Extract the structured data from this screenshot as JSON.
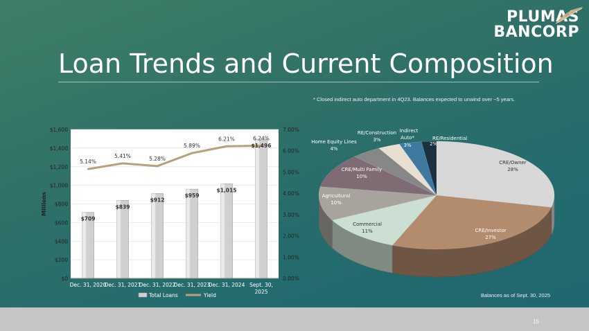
{
  "logo": {
    "line1": "PLUMAS",
    "line2": "BANCORP"
  },
  "title": "Loan Trends and Current Composition",
  "footnote": "* Closed indirect auto department in 4Q23. Balances expected to unwind over ~5 years.",
  "as_of": "Balances as of Sept. 30, 2025",
  "page_number": "15",
  "chart_data": [
    {
      "type": "bar",
      "categories": [
        "Dec. 31, 2020",
        "Dec. 31, 2021",
        "Dec. 31, 2022",
        "Dec. 31, 2023",
        "Dec. 31, 2024",
        "Sept. 30, 2025"
      ],
      "series": [
        {
          "name": "Total Loans",
          "values": [
            709,
            839,
            912,
            959,
            1015,
            1496
          ],
          "labels": [
            "$709",
            "$839",
            "$912",
            "$959",
            "$1,015",
            "$1,496"
          ],
          "axis": "left"
        },
        {
          "name": "Yield",
          "type": "line",
          "values": [
            5.14,
            5.41,
            5.28,
            5.89,
            6.21,
            6.24
          ],
          "labels": [
            "5.14%",
            "5.41%",
            "5.28%",
            "5.89%",
            "6.21%",
            "6.24%"
          ],
          "axis": "right"
        }
      ],
      "ylabel": "Millions",
      "ylim": [
        0,
        1600
      ],
      "y_ticks": [
        "$0",
        "$200",
        "$400",
        "$600",
        "$800",
        "$1,000",
        "$1,200",
        "$1,400",
        "$1,600"
      ],
      "y2lim": [
        0,
        7
      ],
      "y2_ticks": [
        "0.00%",
        "1.00%",
        "2.00%",
        "3.00%",
        "4.00%",
        "5.00%",
        "6.00%",
        "7.00%"
      ],
      "legend": "bottom",
      "colors": {
        "bar": "#d0d0d0",
        "line": "#b8a078"
      }
    },
    {
      "type": "pie",
      "style": "3d",
      "slices": [
        {
          "label": "CRE/Owner",
          "pct": 28,
          "text": "28%",
          "color": "#d8d8d8"
        },
        {
          "label": "CRE/Investor",
          "pct": 27,
          "text": "27%",
          "color": "#b38b6d"
        },
        {
          "label": "Commercial",
          "pct": 11,
          "text": "11%",
          "color": "#cbdfd2"
        },
        {
          "label": "Agricultural",
          "pct": 10,
          "text": "10%",
          "color": "#a8a49d"
        },
        {
          "label": "CRE/Multi Family",
          "pct": 10,
          "text": "10%",
          "color": "#7e6b73"
        },
        {
          "label": "Home Equity Lines",
          "pct": 4,
          "text": "4%",
          "color": "#878787"
        },
        {
          "label": "RE/Construction",
          "pct": 3,
          "text": "3%",
          "color": "#e8dfd3"
        },
        {
          "label": "Indirect Auto*",
          "pct": 3,
          "text": "3%",
          "color": "#3e7aa0"
        },
        {
          "label": "RE/Residential",
          "pct": 2,
          "text": "2%",
          "color": "#1b3140"
        }
      ]
    }
  ]
}
